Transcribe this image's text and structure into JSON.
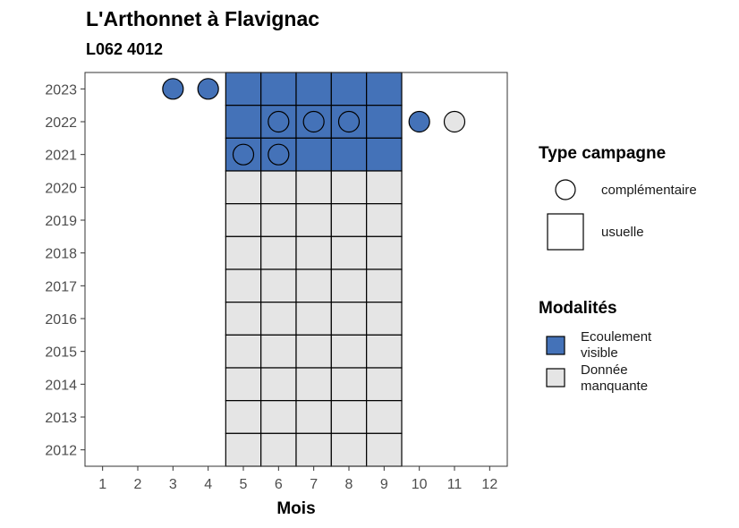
{
  "header": {
    "title": "L'Arthonnet à Flavignac",
    "subtitle": "L062 4012"
  },
  "legend": {
    "type_title": "Type campagne",
    "type_items": [
      {
        "label": "complémentaire",
        "shape": "circle"
      },
      {
        "label": "usuelle",
        "shape": "square"
      }
    ],
    "mod_title": "Modalités",
    "mod_items": [
      {
        "label_line1": "Ecoulement",
        "label_line2": "visible",
        "color": "#4472b8"
      },
      {
        "label_line1": "Donnée",
        "label_line2": "manquante",
        "color": "#e5e5e5"
      }
    ]
  },
  "colors": {
    "Ecoulement visible": "#4472b8",
    "Donnée manquante": "#e5e5e5"
  },
  "chart_data": {
    "type": "heatmap",
    "title": "L'Arthonnet à Flavignac",
    "subtitle": "L062 4012",
    "xlabel": "Mois",
    "ylabel": "",
    "x_ticks": [
      1,
      2,
      3,
      4,
      5,
      6,
      7,
      8,
      9,
      10,
      11,
      12
    ],
    "y_ticks": [
      2012,
      2013,
      2014,
      2015,
      2016,
      2017,
      2018,
      2019,
      2020,
      2021,
      2022,
      2023
    ],
    "xlim": [
      0.5,
      12.5
    ],
    "ylim": [
      2011.5,
      2023.5
    ],
    "usuelle": [
      {
        "year": 2023,
        "months": [
          5,
          6,
          7,
          8,
          9
        ],
        "modalite": "Ecoulement visible"
      },
      {
        "year": 2022,
        "months": [
          5,
          6,
          7,
          8,
          9
        ],
        "modalite": "Ecoulement visible"
      },
      {
        "year": 2021,
        "months": [
          5,
          6,
          7,
          8,
          9
        ],
        "modalite": "Ecoulement visible"
      },
      {
        "year": 2020,
        "months": [
          5,
          6,
          7,
          8,
          9
        ],
        "modalite": "Donnée manquante"
      },
      {
        "year": 2019,
        "months": [
          5,
          6,
          7,
          8,
          9
        ],
        "modalite": "Donnée manquante"
      },
      {
        "year": 2018,
        "months": [
          5,
          6,
          7,
          8,
          9
        ],
        "modalite": "Donnée manquante"
      },
      {
        "year": 2017,
        "months": [
          5,
          6,
          7,
          8,
          9
        ],
        "modalite": "Donnée manquante"
      },
      {
        "year": 2016,
        "months": [
          5,
          6,
          7,
          8,
          9
        ],
        "modalite": "Donnée manquante"
      },
      {
        "year": 2015,
        "months": [
          5,
          6,
          7,
          8,
          9
        ],
        "modalite": "Donnée manquante"
      },
      {
        "year": 2014,
        "months": [
          5,
          6,
          7,
          8,
          9
        ],
        "modalite": "Donnée manquante"
      },
      {
        "year": 2013,
        "months": [
          5,
          6,
          7,
          8,
          9
        ],
        "modalite": "Donnée manquante"
      },
      {
        "year": 2012,
        "months": [
          5,
          6,
          7,
          8,
          9
        ],
        "modalite": "Donnée manquante"
      }
    ],
    "complementaire": [
      {
        "year": 2023,
        "month": 3,
        "modalite": "Ecoulement visible"
      },
      {
        "year": 2023,
        "month": 4,
        "modalite": "Ecoulement visible"
      },
      {
        "year": 2022,
        "month": 6,
        "modalite": "Ecoulement visible"
      },
      {
        "year": 2022,
        "month": 7,
        "modalite": "Ecoulement visible"
      },
      {
        "year": 2022,
        "month": 8,
        "modalite": "Ecoulement visible"
      },
      {
        "year": 2022,
        "month": 10,
        "modalite": "Ecoulement visible"
      },
      {
        "year": 2022,
        "month": 11,
        "modalite": "Donnée manquante"
      },
      {
        "year": 2021,
        "month": 5,
        "modalite": "Ecoulement visible"
      },
      {
        "year": 2021,
        "month": 6,
        "modalite": "Ecoulement visible"
      }
    ],
    "legend_position": "right",
    "grid": false
  }
}
